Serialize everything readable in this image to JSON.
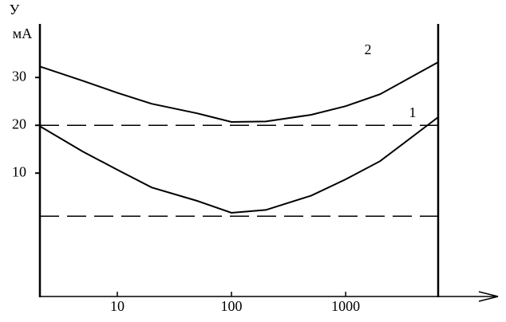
{
  "chart_data": {
    "type": "line",
    "y_label": "У",
    "y_unit": "мА",
    "x": [
      2.1,
      5,
      10,
      20,
      50,
      100,
      200,
      500,
      1000,
      2000,
      6460
    ],
    "series": [
      {
        "name": "2",
        "color": "#000000",
        "values": [
          32.3,
          29.3,
          26.8,
          24.5,
          22.5,
          20.7,
          20.8,
          22.2,
          24,
          26.5,
          33.2
        ]
      },
      {
        "name": "1",
        "color": "#000000",
        "values": [
          19.8,
          14.5,
          10.7,
          7,
          4.2,
          1.7,
          2.3,
          5.3,
          8.7,
          12.5,
          21.7
        ]
      }
    ],
    "reference_lines": [
      20,
      1
    ],
    "xlim": [
      2.1,
      6460
    ],
    "xticks": [
      10,
      100,
      1000
    ],
    "xscale": "log",
    "ylim": [
      -15.8,
      41.2
    ],
    "yticks": [
      10,
      20,
      30
    ],
    "grid": false
  }
}
